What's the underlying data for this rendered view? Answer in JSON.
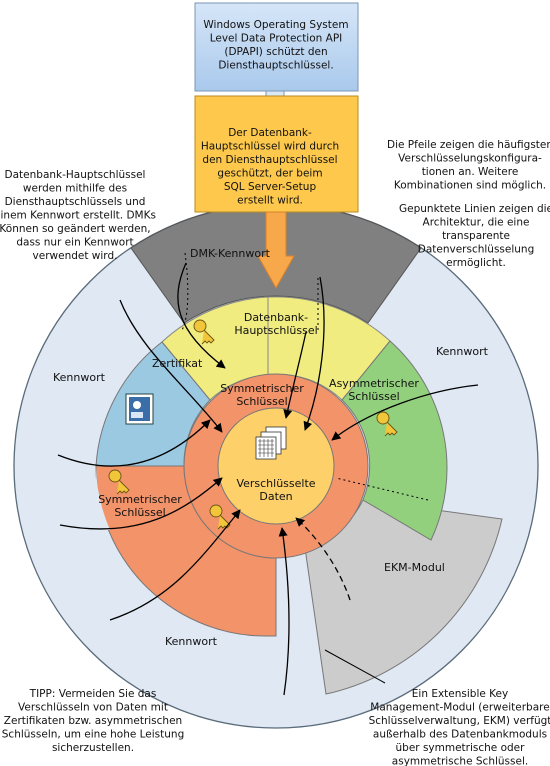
{
  "top_box": [
    "Windows Operating System",
    "Level Data Protection API",
    "(DPAPI) schützt den",
    "Diensthauptschlüssel."
  ],
  "smk_box": [
    "Der Datenbank-",
    "Hauptschlüssel wird durch",
    "den Diensthauptschlüssel",
    "geschützt, der beim",
    "SQL Server-Setup",
    "erstellt wird."
  ],
  "note_left_top": [
    "Datenbank-Hauptschlüssel",
    "werden mithilfe des",
    "Diensthauptschlüssels und",
    "einem Kennwort erstellt. DMKs",
    "Können so geändert werden,",
    "dass nur ein Kennwort",
    "verwendet wird."
  ],
  "note_right_arrows": [
    "Die Pfeile zeigen die häufigsten",
    "Verschlüsselungskonfigura-",
    "tionen an. Weitere",
    "Kombinationen sind möglich."
  ],
  "note_right_dotted": [
    "Gepunktete Linien zeigen die",
    "Architektur, die eine",
    "transparente",
    "Datenverschlüsselung",
    "ermöglicht."
  ],
  "note_bottom_left": [
    "TIPP: Vermeiden Sie das",
    "Verschlüsseln von Daten mit",
    "Zertifikaten bzw. asymmetrischen",
    "Schlüsseln, um eine hohe Leistung",
    "sicherzustellen."
  ],
  "note_bottom_right": [
    "Ein Extensible Key",
    "Management-Modul (erweiterbare",
    "Schlüsselverwaltung, EKM) verfügt",
    "außerhalb des Datenbankmoduls",
    "über symmetrische oder",
    "asymmetrische Schlüssel."
  ],
  "labels": {
    "dmk_password": "DMK-Kennwort",
    "dmk": [
      "Datenbank-",
      "Hauptschlüssel"
    ],
    "certificate": "Zertifikat",
    "asymmetric": [
      "Asymmetrischer",
      "Schlüssel"
    ],
    "symmetric_inner": [
      "Symmetrischer",
      "Schlüssel"
    ],
    "symmetric_outer": [
      "Symmetrischer",
      "Schlüssel"
    ],
    "encrypted": [
      "Verschlüsselte",
      "Daten"
    ],
    "password_left": "Kennwort",
    "password_right": "Kennwort",
    "password_bottom": "Kennwort",
    "ekm": "EKM-Modul"
  },
  "colors": {
    "outer_ring": "#dfe8f3",
    "dmk_password_band": "#808080",
    "dmk": "#f0ec80",
    "certificate": "#9cc9e2",
    "asymmetric": "#93d07e",
    "symmetric": "#f2936a",
    "core": "#fdd06a",
    "ekm": "#cccccc",
    "top_box": "#bcd6f2",
    "smk_box": "#fdc84c",
    "arrow": "#f7a84a"
  }
}
